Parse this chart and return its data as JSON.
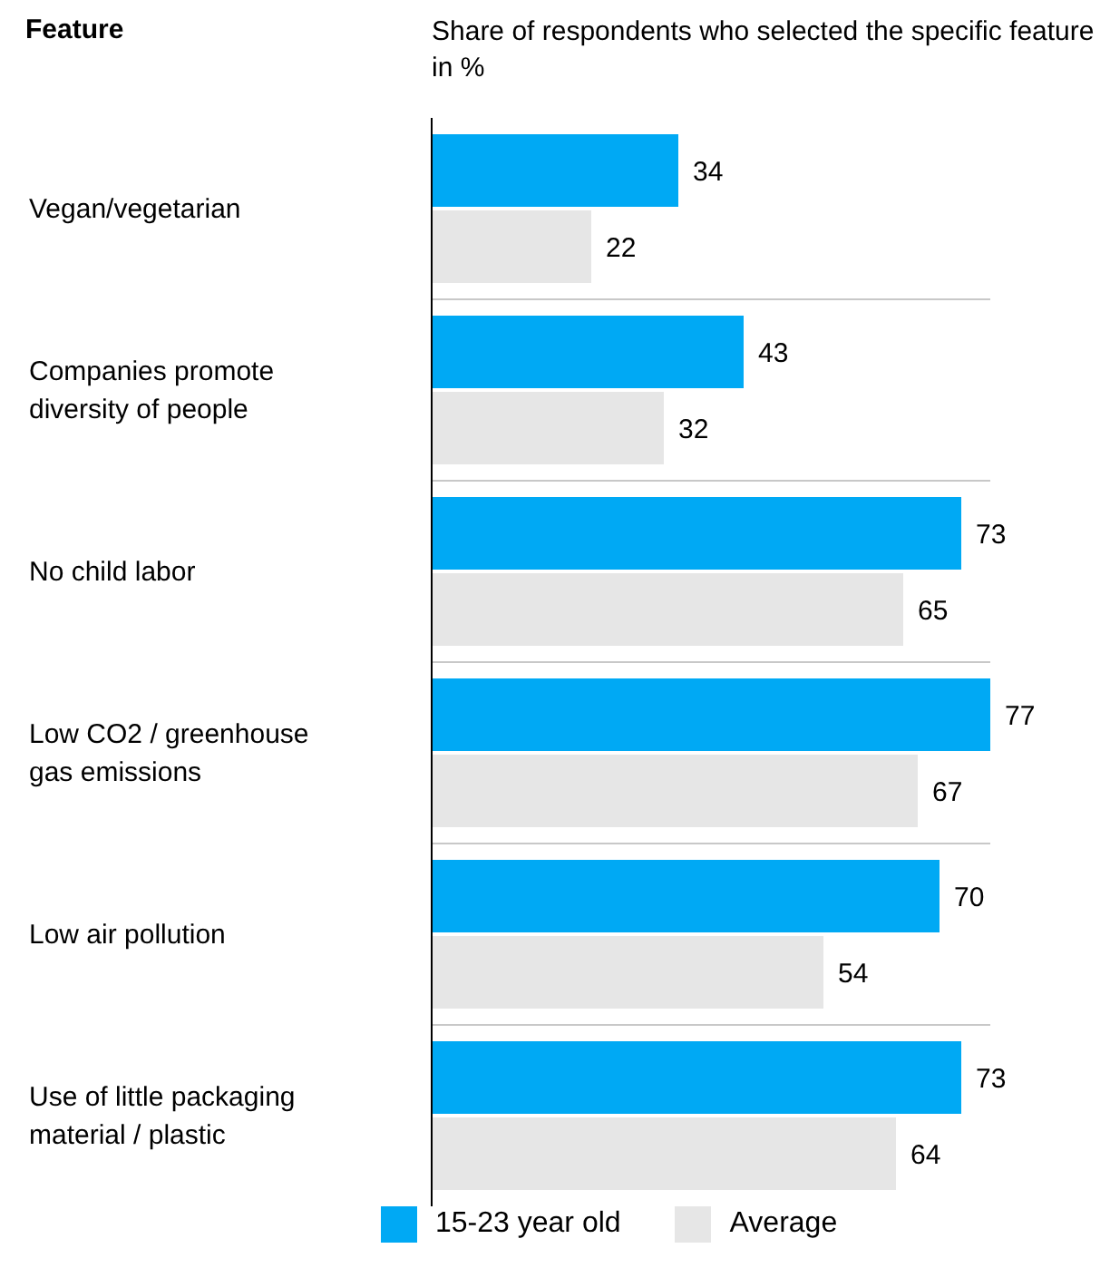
{
  "chart_data": {
    "type": "bar",
    "orientation": "horizontal",
    "ylabel": "Feature",
    "xlabel": "Share of respondents who selected the specific feature in %",
    "categories": [
      "Vegan/vegetarian",
      "Companies promote diversity of people",
      "No child labor",
      "Low CO2 / greenhouse gas emissions",
      "Low air pollution",
      "Use of little packaging material / plastic"
    ],
    "series": [
      {
        "name": "15-23 year old",
        "color": "#00a9f4",
        "values": [
          34,
          43,
          73,
          77,
          70,
          73
        ]
      },
      {
        "name": "Average",
        "color": "#e6e6e6",
        "values": [
          22,
          32,
          65,
          67,
          54,
          64
        ]
      }
    ],
    "data_labels": true,
    "grid": "y",
    "legend": "bottom"
  }
}
